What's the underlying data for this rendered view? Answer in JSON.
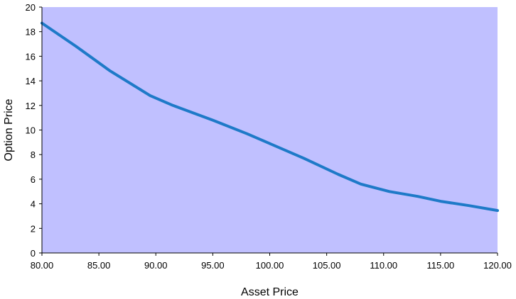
{
  "chart_data": {
    "type": "line",
    "title": "",
    "xlabel": "Asset Price",
    "ylabel": "Option Price",
    "xlim": [
      80,
      120
    ],
    "ylim": [
      0,
      20
    ],
    "x_ticks": [
      "80.00",
      "85.00",
      "90.00",
      "95.00",
      "100.00",
      "105.00",
      "110.00",
      "115.00",
      "120.00"
    ],
    "y_ticks": [
      "0",
      "2",
      "4",
      "6",
      "8",
      "10",
      "12",
      "14",
      "16",
      "18",
      "20"
    ],
    "grid": false,
    "legend": "none",
    "series": [
      {
        "x": [
          80,
          83,
          86,
          89.5,
          91.5,
          95,
          98,
          100,
          103,
          106,
          108,
          110.5,
          113,
          115,
          117.5,
          120
        ],
        "y": [
          18.7,
          16.8,
          14.8,
          12.8,
          12.0,
          10.8,
          9.7,
          8.9,
          7.7,
          6.4,
          5.6,
          5.0,
          4.6,
          4.2,
          3.85,
          3.45
        ]
      }
    ],
    "colors": {
      "plot_background": "#c0c0ff",
      "line": "#1e7ac8",
      "axis": "#000000"
    }
  }
}
